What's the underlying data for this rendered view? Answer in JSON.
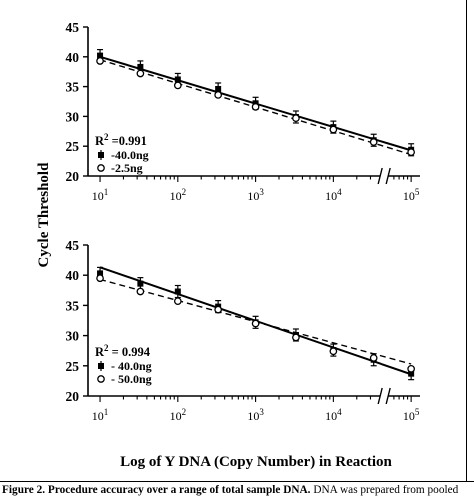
{
  "ylabel": "Cycle Threshold",
  "xlabel": "Log of Y DNA (Copy Number) in Reaction",
  "caption": {
    "bold": "Figure 2. Procedure accuracy over a range of total sample DNA.",
    "rest": " DNA was prepared from pooled"
  },
  "chart_data": [
    {
      "type": "scatter",
      "xscale": "log",
      "xlim": [
        7,
        130000
      ],
      "ylim": [
        20,
        45
      ],
      "yticks": [
        20,
        25,
        30,
        35,
        40,
        45
      ],
      "xticks": [
        {
          "value": 10,
          "base": "10",
          "exp": "1"
        },
        {
          "value": 100,
          "base": "10",
          "exp": "2"
        },
        {
          "value": 1000,
          "base": "10",
          "exp": "3"
        },
        {
          "value": 10000,
          "base": "10",
          "exp": "4"
        },
        {
          "value": 100000,
          "base": "10",
          "exp": "5"
        }
      ],
      "axis_break_x": 45000,
      "grid": false,
      "r2_label": "R",
      "r2_sup": "2",
      "r2_value": " =0.991",
      "legend_position": "lower-left",
      "series": [
        {
          "name": "-40.0ng",
          "marker": "filled-square",
          "line": "solid",
          "x": [
            10,
            33,
            100,
            330,
            1000,
            3300,
            10000,
            33000,
            100000
          ],
          "y": [
            40.2,
            38.3,
            36.2,
            34.6,
            32.2,
            29.9,
            28.2,
            26.0,
            24.4
          ],
          "fit": [
            40.0,
            24.3
          ]
        },
        {
          "name": "-2.5ng",
          "marker": "open-circle",
          "line": "dashed",
          "x": [
            10,
            33,
            100,
            330,
            1000,
            3300,
            10000,
            33000,
            100000
          ],
          "y": [
            39.3,
            37.2,
            35.2,
            33.6,
            31.6,
            29.7,
            27.8,
            25.7,
            24.0
          ],
          "fit": [
            39.5,
            23.6
          ]
        }
      ]
    },
    {
      "type": "scatter",
      "xscale": "log",
      "xlim": [
        7,
        130000
      ],
      "ylim": [
        20,
        45
      ],
      "yticks": [
        20,
        25,
        30,
        35,
        40,
        45
      ],
      "xticks": [
        {
          "value": 10,
          "base": "10",
          "exp": "1"
        },
        {
          "value": 100,
          "base": "10",
          "exp": "2"
        },
        {
          "value": 1000,
          "base": "10",
          "exp": "3"
        },
        {
          "value": 10000,
          "base": "10",
          "exp": "4"
        },
        {
          "value": 100000,
          "base": "10",
          "exp": "5"
        }
      ],
      "axis_break_x": 45000,
      "grid": false,
      "r2_label": "R",
      "r2_sup": "2",
      "r2_value": " = 0.994",
      "legend_position": "lower-left",
      "series": [
        {
          "name": "- 40.0ng",
          "marker": "filled-square",
          "line": "solid",
          "x": [
            10,
            33,
            100,
            330,
            1000,
            3300,
            10000,
            33000,
            100000
          ],
          "y": [
            40.3,
            38.6,
            37.3,
            34.8,
            32.2,
            30.1,
            27.6,
            26.0,
            23.7
          ],
          "fit": [
            41.3,
            23.6
          ]
        },
        {
          "name": "- 50.0ng",
          "marker": "open-circle",
          "line": "dashed",
          "x": [
            10,
            33,
            100,
            330,
            1000,
            3300,
            10000,
            33000,
            100000
          ],
          "y": [
            39.5,
            37.3,
            35.7,
            34.3,
            32.0,
            29.7,
            27.4,
            26.3,
            24.5
          ],
          "fit": [
            39.3,
            25.3
          ]
        }
      ]
    }
  ]
}
